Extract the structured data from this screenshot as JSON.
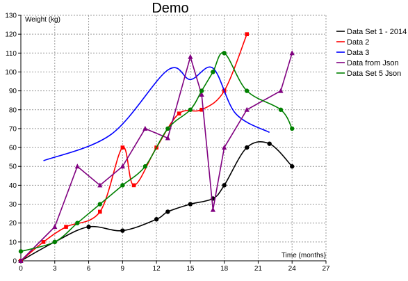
{
  "chart_data": {
    "type": "line",
    "title": "Demo",
    "xlabel": "Time (months)",
    "ylabel": "Weight (kg)",
    "xlim": [
      0,
      27
    ],
    "ylim": [
      0,
      130
    ],
    "x_ticks": [
      0,
      3,
      6,
      9,
      12,
      15,
      18,
      21,
      24,
      27
    ],
    "y_ticks": [
      0,
      10,
      20,
      30,
      40,
      50,
      60,
      70,
      80,
      90,
      100,
      110,
      120,
      130
    ],
    "grid": true,
    "legend_position": "right",
    "series": [
      {
        "name": "Data Set 1 - 2014",
        "color": "#000000",
        "marker": "circle",
        "x": [
          0,
          3,
          6,
          9,
          12,
          13,
          15,
          17,
          18,
          20,
          22,
          24
        ],
        "y": [
          0,
          10,
          18,
          16,
          22,
          26,
          30,
          33,
          40,
          60,
          62,
          50
        ]
      },
      {
        "name": "Data 2",
        "color": "#ff0000",
        "marker": "square",
        "x": [
          0,
          2,
          4,
          7,
          9,
          10,
          12,
          14,
          16,
          18,
          20
        ],
        "y": [
          0,
          10,
          18,
          26,
          60,
          40,
          60,
          78,
          80,
          90,
          120
        ]
      },
      {
        "name": "Data 3",
        "color": "#0000ff",
        "marker": "none",
        "x": [
          2,
          8,
          13,
          15,
          17,
          19,
          22
        ],
        "y": [
          53,
          67,
          101,
          96,
          102,
          78,
          68
        ]
      },
      {
        "name": "Data from Json",
        "color": "#800080",
        "marker": "triangle",
        "x": [
          0,
          3,
          5,
          7,
          9,
          11,
          13,
          15,
          16,
          17,
          18,
          20,
          23,
          24
        ],
        "y": [
          0,
          18,
          50,
          40,
          50,
          70,
          65,
          108,
          88,
          27,
          60,
          80,
          90,
          110
        ]
      },
      {
        "name": "Data Set 5 Json",
        "color": "#008000",
        "marker": "circle",
        "x": [
          0,
          3,
          5,
          7,
          9,
          11,
          13,
          15,
          16,
          17,
          18,
          20,
          23,
          24
        ],
        "y": [
          5,
          10,
          20,
          30,
          40,
          50,
          70,
          80,
          90,
          100,
          110,
          90,
          80,
          70
        ]
      }
    ]
  }
}
